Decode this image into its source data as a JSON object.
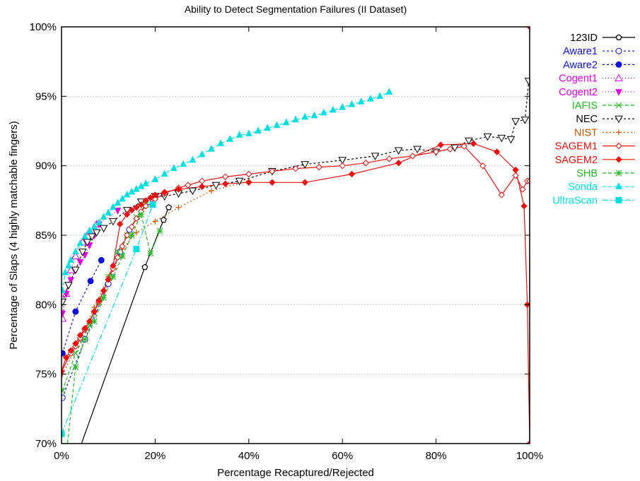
{
  "chart_data": {
    "type": "line",
    "title": "Ability to Detect Segmentation Failures (II Dataset)",
    "xlabel": "Percentage Recaptured/Rejected",
    "ylabel": "Percentage of Slaps (4 highly matchable fingers)",
    "xlim": [
      0,
      100
    ],
    "ylim": [
      70,
      100
    ],
    "x_ticks": [
      "0%",
      "20%",
      "40%",
      "60%",
      "80%",
      "100%"
    ],
    "y_ticks": [
      "70%",
      "75%",
      "80%",
      "85%",
      "90%",
      "95%",
      "100%"
    ],
    "grid": "horizontal",
    "legend_position": "right",
    "series": [
      {
        "name": "123ID",
        "color": "#000000",
        "dash": "",
        "marker": "pentagon-open",
        "x": [
          0,
          17.8,
          21.8,
          22.9
        ],
        "y": [
          66.0,
          82.7,
          86.1,
          87.0
        ]
      },
      {
        "name": "Aware1",
        "color": "#1010dd",
        "dash": "3,3",
        "marker": "circle-open",
        "x": [
          0.2,
          5,
          10,
          12.5,
          14.5,
          18.5
        ],
        "y": [
          73.3,
          77.5,
          81.5,
          83.8,
          85.4,
          87.4
        ]
      },
      {
        "name": "Aware2",
        "color": "#1010dd",
        "dash": "3,3",
        "marker": "circle-filled",
        "x": [
          0.2,
          3,
          6.2,
          8.5
        ],
        "y": [
          76.5,
          79.5,
          81.7,
          83.2
        ]
      },
      {
        "name": "Cogent1",
        "color": "#e000e0",
        "dash": "1,3",
        "marker": "triangle-up-open",
        "x": [
          0.2,
          1,
          2,
          3,
          4.5,
          6,
          7.5
        ],
        "y": [
          79.0,
          80.8,
          82.5,
          83.5,
          84.5,
          85.3,
          85.8
        ]
      },
      {
        "name": "Cogent2",
        "color": "#e000e0",
        "dash": "1,3",
        "marker": "triangle-down-filled",
        "x": [
          0.2,
          1,
          2,
          3,
          4,
          5,
          6,
          7,
          8,
          12
        ],
        "y": [
          79.4,
          80.8,
          81.8,
          82.5,
          83.1,
          83.6,
          84.3,
          85.0,
          85.8,
          86.8
        ]
      },
      {
        "name": "IAFIS",
        "color": "#22bb22",
        "dash": "5,3",
        "marker": "x",
        "x": [
          0.2,
          3,
          6,
          8,
          10,
          12,
          14,
          16,
          18
        ],
        "y": [
          73.8,
          76.5,
          78.5,
          80.2,
          82.0,
          83.8,
          85.0,
          86.3,
          87.2
        ]
      },
      {
        "name": "NEC",
        "color": "#000000",
        "dash": "3,3",
        "marker": "triangle-down-open",
        "x": [
          0.2,
          1.5,
          3,
          4.5,
          5.5,
          6.5,
          7.5,
          9,
          11,
          14,
          17,
          20,
          22,
          25,
          28,
          33,
          38,
          45,
          52,
          60,
          67,
          72,
          76,
          80,
          84,
          87,
          91,
          94,
          96,
          97,
          99,
          99.8
        ],
        "y": [
          80.2,
          81.4,
          82.5,
          83.8,
          84.5,
          84.9,
          85.2,
          85.5,
          86.0,
          86.8,
          87.4,
          87.8,
          87.8,
          88.0,
          88.2,
          88.6,
          88.9,
          89.6,
          90.1,
          90.4,
          90.7,
          91.1,
          91.2,
          91.0,
          91.3,
          91.8,
          92.1,
          92.0,
          91.9,
          93.2,
          93.3,
          96.1
        ]
      },
      {
        "name": "NIST",
        "color": "#cc5500",
        "dash": "2,3",
        "marker": "plus",
        "x": [
          0.2,
          4,
          7,
          10,
          13,
          16,
          20,
          25,
          32,
          40
        ],
        "y": [
          75.0,
          77.5,
          79.8,
          82.0,
          84.0,
          85.2,
          86.0,
          87.0,
          88.2,
          88.9
        ]
      },
      {
        "name": "SAGEM1",
        "color": "#ee1111",
        "dash": "",
        "marker": "diamond-open",
        "x": [
          0,
          2,
          3,
          4,
          5,
          6,
          7,
          8,
          9,
          10,
          11,
          12,
          13,
          14,
          15,
          16,
          17,
          18,
          20,
          22,
          25,
          27,
          30,
          35,
          40,
          45,
          50,
          55,
          60,
          65,
          70,
          75,
          80,
          83,
          86,
          90,
          94,
          97,
          98.5,
          99.5,
          100
        ],
        "y": [
          75.2,
          76.5,
          77.0,
          77.6,
          78.2,
          78.8,
          79.5,
          80.2,
          81.0,
          81.8,
          82.6,
          83.4,
          84.2,
          85.0,
          85.6,
          86.2,
          86.7,
          87.1,
          87.6,
          88.0,
          88.4,
          88.6,
          88.9,
          89.2,
          89.4,
          89.6,
          89.8,
          89.9,
          90.0,
          90.2,
          90.5,
          90.7,
          91.0,
          91.2,
          91.4,
          90.0,
          87.9,
          89.3,
          88.3,
          88.9,
          88.9
        ]
      },
      {
        "name": "SAGEM2",
        "color": "#ee1111",
        "dash": "",
        "marker": "diamond-filled",
        "x": [
          0,
          1,
          2,
          3,
          4,
          5,
          6,
          7,
          8,
          9,
          10,
          11,
          12.5,
          14,
          15,
          16,
          17,
          18,
          19,
          20,
          22,
          25,
          30,
          35,
          40,
          45,
          52,
          62,
          72,
          81,
          88,
          93,
          97,
          98.8,
          99.5,
          100,
          100
        ],
        "y": [
          75.2,
          76.2,
          76.7,
          77.2,
          77.8,
          78.3,
          78.8,
          79.5,
          80.3,
          81.0,
          81.8,
          82.8,
          85.8,
          86.5,
          86.8,
          87.0,
          87.2,
          87.5,
          87.7,
          87.9,
          88.1,
          88.3,
          88.5,
          88.7,
          88.8,
          88.8,
          88.8,
          89.4,
          90.2,
          91.5,
          91.6,
          91.0,
          89.7,
          87.1,
          80.0,
          70.0,
          100.0
        ]
      },
      {
        "name": "SHB",
        "color": "#22bb22",
        "dash": "5,3",
        "marker": "asterisk",
        "x": [
          0,
          3,
          5,
          7,
          9,
          11,
          13,
          15,
          17,
          19,
          21
        ],
        "y": [
          66.0,
          75.5,
          77.5,
          78.8,
          80.5,
          82.0,
          83.5,
          85.0,
          86.5,
          83.7,
          85.3
        ]
      },
      {
        "name": "Sonda",
        "color": "#00e0e0",
        "dash": "5,3",
        "marker": "triangle-up-filled",
        "x": [
          0.2,
          0.8,
          1.5,
          2,
          3,
          4,
          5,
          6,
          7,
          8,
          9,
          10,
          11,
          12,
          13,
          14,
          15,
          16,
          17,
          18,
          20,
          22,
          24,
          26,
          28,
          30,
          32,
          34,
          36,
          38,
          40,
          42,
          44,
          46,
          48,
          50,
          52,
          54,
          56,
          58,
          60,
          62,
          64,
          66,
          68,
          70
        ],
        "y": [
          81.0,
          82.3,
          82.8,
          83.2,
          83.8,
          84.4,
          84.9,
          85.3,
          85.6,
          85.9,
          86.3,
          86.6,
          87.0,
          87.3,
          87.6,
          87.9,
          88.1,
          88.3,
          88.5,
          88.7,
          89.0,
          89.4,
          89.8,
          90.1,
          90.4,
          90.8,
          91.2,
          91.6,
          91.9,
          92.2,
          92.3,
          92.5,
          92.7,
          92.9,
          93.1,
          93.3,
          93.5,
          93.6,
          93.8,
          94.0,
          94.2,
          94.4,
          94.6,
          94.8,
          95.0,
          95.3
        ]
      },
      {
        "name": "UltraScan",
        "color": "#00e0e0",
        "dash": "8,3,2,3",
        "marker": "square-filled",
        "x": [
          0,
          16,
          19.5
        ],
        "y": [
          70.7,
          84.0,
          87.2
        ]
      }
    ]
  }
}
